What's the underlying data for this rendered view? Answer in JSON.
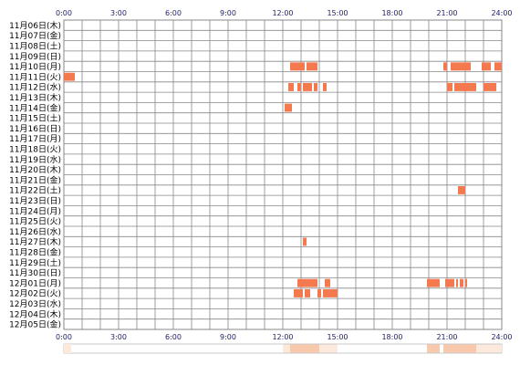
{
  "chart_data": {
    "type": "heatmap",
    "title": "",
    "xlabel": "",
    "ylabel": "",
    "x_ticks": [
      "0:00",
      "3:00",
      "6:00",
      "9:00",
      "12:00",
      "15:00",
      "18:00",
      "21:00",
      "24:00"
    ],
    "xlim": [
      0,
      24
    ],
    "grid": true,
    "colors": {
      "active": "#f5794e",
      "grid": "#888888",
      "axis_text": "#222266",
      "strip_light": "#fde8dc",
      "strip_mid": "#f9c9ad",
      "strip_dark": "#f6a27e"
    },
    "rows": [
      "11月06日(木)",
      "11月07日(金)",
      "11月08日(土)",
      "11月09日(日)",
      "11月10日(月)",
      "11月11日(火)",
      "11月12日(水)",
      "11月13日(木)",
      "11月14日(金)",
      "11月15日(土)",
      "11月16日(日)",
      "11月17日(月)",
      "11月18日(火)",
      "11月19日(水)",
      "11月20日(木)",
      "11月21日(金)",
      "11月22日(土)",
      "11月23日(日)",
      "11月24日(月)",
      "11月25日(火)",
      "11月26日(水)",
      "11月27日(木)",
      "11月28日(金)",
      "11月29日(土)",
      "11月30日(日)",
      "12月01日(月)",
      "12月02日(火)",
      "12月03日(水)",
      "12月04日(木)",
      "12月05日(金)"
    ],
    "activity": [
      {
        "row": 4,
        "start": 12.4,
        "end": 13.2
      },
      {
        "row": 4,
        "start": 13.3,
        "end": 13.9
      },
      {
        "row": 4,
        "start": 20.8,
        "end": 21.0
      },
      {
        "row": 4,
        "start": 21.2,
        "end": 22.3
      },
      {
        "row": 4,
        "start": 22.9,
        "end": 23.4
      },
      {
        "row": 4,
        "start": 23.6,
        "end": 24.0
      },
      {
        "row": 5,
        "start": 0.0,
        "end": 0.6
      },
      {
        "row": 6,
        "start": 12.3,
        "end": 12.6
      },
      {
        "row": 6,
        "start": 12.8,
        "end": 13.0
      },
      {
        "row": 6,
        "start": 13.1,
        "end": 13.6
      },
      {
        "row": 6,
        "start": 13.7,
        "end": 13.9
      },
      {
        "row": 6,
        "start": 14.2,
        "end": 14.4
      },
      {
        "row": 6,
        "start": 21.0,
        "end": 21.3
      },
      {
        "row": 6,
        "start": 21.4,
        "end": 22.6
      },
      {
        "row": 6,
        "start": 23.0,
        "end": 23.7
      },
      {
        "row": 8,
        "start": 12.1,
        "end": 12.5
      },
      {
        "row": 16,
        "start": 21.6,
        "end": 22.0
      },
      {
        "row": 21,
        "start": 13.1,
        "end": 13.3
      },
      {
        "row": 25,
        "start": 12.8,
        "end": 13.9
      },
      {
        "row": 25,
        "start": 14.3,
        "end": 14.6
      },
      {
        "row": 25,
        "start": 19.9,
        "end": 20.6
      },
      {
        "row": 25,
        "start": 20.9,
        "end": 21.4
      },
      {
        "row": 25,
        "start": 21.5,
        "end": 21.6
      },
      {
        "row": 25,
        "start": 21.7,
        "end": 21.9
      },
      {
        "row": 25,
        "start": 22.0,
        "end": 22.1
      },
      {
        "row": 26,
        "start": 12.6,
        "end": 13.1
      },
      {
        "row": 26,
        "start": 13.2,
        "end": 13.5
      },
      {
        "row": 26,
        "start": 13.9,
        "end": 14.1
      },
      {
        "row": 26,
        "start": 14.2,
        "end": 15.0
      }
    ],
    "summary_strip": [
      {
        "start": 12.0,
        "end": 12.4,
        "level": 1
      },
      {
        "start": 12.4,
        "end": 14.0,
        "level": 2
      },
      {
        "start": 14.0,
        "end": 15.0,
        "level": 1
      },
      {
        "start": 19.9,
        "end": 20.6,
        "level": 2
      },
      {
        "start": 20.8,
        "end": 22.6,
        "level": 2
      },
      {
        "start": 22.6,
        "end": 24.0,
        "level": 1
      }
    ]
  }
}
